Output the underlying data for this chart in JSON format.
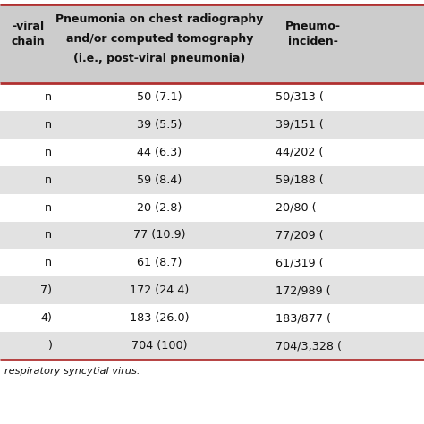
{
  "col1_header_lines": [
    "-viral",
    "chain",
    ""
  ],
  "col2_header_lines": [
    "Pneumonia on chest radiography",
    "and/or computed tomography",
    "(i.e., post-viral pneumonia)"
  ],
  "col3_header_lines": [
    "Pneumo-",
    "inciden-",
    ""
  ],
  "rows": [
    {
      "col1": "n",
      "col2": "50 (7.1)",
      "col3": "50/313 (",
      "bg": "#ffffff"
    },
    {
      "col1": "n",
      "col2": "39 (5.5)",
      "col3": "39/151 (",
      "bg": "#e2e2e2"
    },
    {
      "col1": "n",
      "col2": "44 (6.3)",
      "col3": "44/202 (",
      "bg": "#ffffff"
    },
    {
      "col1": "n",
      "col2": "59 (8.4)",
      "col3": "59/188 (",
      "bg": "#e2e2e2"
    },
    {
      "col1": "n",
      "col2": "20 (2.8)",
      "col3": "20/80 (",
      "bg": "#ffffff"
    },
    {
      "col1": "n",
      "col2": "77 (10.9)",
      "col3": "77/209 (",
      "bg": "#e2e2e2"
    },
    {
      "col1": "n",
      "col2": "61 (8.7)",
      "col3": "61/319 (",
      "bg": "#ffffff"
    },
    {
      "col1": "7)",
      "col2": "172 (24.4)",
      "col3": "172/989 (",
      "bg": "#e2e2e2"
    },
    {
      "col1": "4)",
      "col2": "183 (26.0)",
      "col3": "183/877 (",
      "bg": "#ffffff"
    },
    {
      "col1": ")",
      "col2": "704 (100)",
      "col3": "704/3,328 (",
      "bg": "#e2e2e2"
    }
  ],
  "footer_text": "respiratory syncytial virus.",
  "header_bg": "#cccccc",
  "border_color": "#b03030",
  "text_color": "#111111",
  "header_fontsize": 9.0,
  "cell_fontsize": 9.2,
  "footer_fontsize": 8.2,
  "fig_width": 4.74,
  "fig_height": 4.74,
  "dpi": 100
}
